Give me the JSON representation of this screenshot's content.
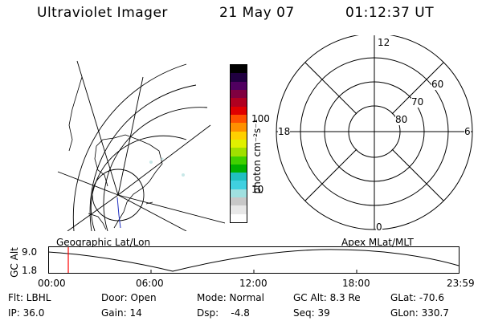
{
  "header": {
    "instrument": "Ultraviolet Imager",
    "date": "21 May 07",
    "time": "01:12:37 UT"
  },
  "colorbar": {
    "unit_label": "photon cm⁻²s⁻¹",
    "ticks": [
      "100",
      "10"
    ],
    "colors": [
      "#ffffff",
      "#e8e8e8",
      "#c8c8c8",
      "#a0e0e0",
      "#40d0e0",
      "#20c0c0",
      "#00b000",
      "#40d000",
      "#a0e000",
      "#e0f000",
      "#ffd000",
      "#ff9000",
      "#ff5000",
      "#e00000",
      "#b00020",
      "#800040",
      "#500060",
      "#200040",
      "#000000"
    ]
  },
  "geo_map": {
    "caption": "Geographic Lat/Lon"
  },
  "polar_plot": {
    "caption": "Apex MLat/MLT",
    "mlt_labels": {
      "top": "12",
      "left": "18",
      "right": "6",
      "bottom": "0"
    },
    "mlat_labels": [
      "60",
      "70",
      "80"
    ]
  },
  "altitude_plot": {
    "ylabel": "GC Alt",
    "yticks": [
      "9.0",
      "1.8"
    ],
    "xticks": [
      "00:00",
      "06:00",
      "12:00",
      "18:00",
      "23:59"
    ],
    "marker_color": "#ff0000"
  },
  "info": {
    "flt": "Flt: LBHL",
    "ip": "IP: 36.0",
    "door": "Door: Open",
    "gain": "Gain: 14",
    "mode": "Mode: Normal",
    "dsp": "Dsp:    -4.8",
    "gcalt": "GC Alt: 8.3 Re",
    "seq": "Seq: 39",
    "glat": "GLat: -70.6",
    "glon": "GLon: 330.7"
  }
}
